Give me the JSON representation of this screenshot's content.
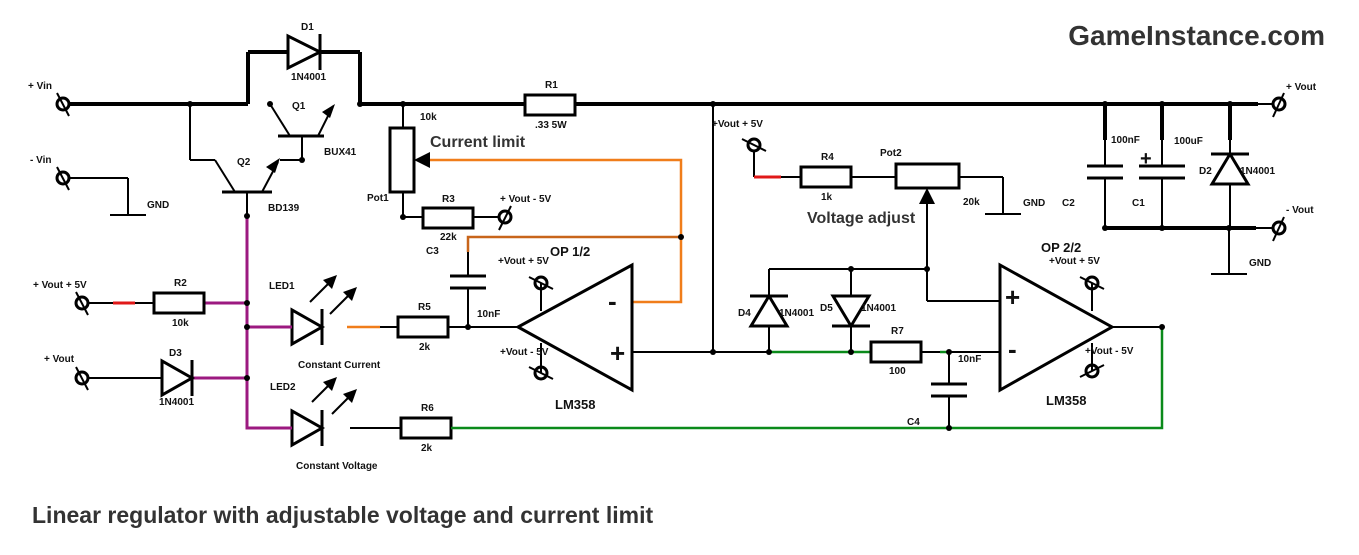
{
  "brand": "GameInstance.com",
  "title": "Linear regulator with adjustable voltage and current limit",
  "labels": {
    "vin_plus": "+ Vin",
    "vin_minus": "- Vin",
    "gnd": "GND",
    "vout_plus": "+ Vout",
    "vout_minus": "- Vout",
    "vout_p5": "+ Vout + 5V",
    "vout_m5": "+ Vout - 5V",
    "vout_p5_b": "+Vout + 5V",
    "vout_m5_b": "+Vout - 5V",
    "vout": "+ Vout",
    "current_limit": "Current limit",
    "voltage_adjust": "Voltage adjust",
    "constant_current": "Constant Current",
    "constant_voltage": "Constant  Voltage",
    "op1": "OP 1/2",
    "op2": "OP 2/2",
    "lm358": "LM358",
    "minus": "-",
    "plus": "+"
  },
  "components": {
    "d1": {
      "name": "D1",
      "value": "1N4001"
    },
    "q1": {
      "name": "Q1",
      "value": "BUX41"
    },
    "q2": {
      "name": "Q2",
      "value": "BD139"
    },
    "r1": {
      "name": "R1",
      "value": ".33 5W"
    },
    "pot1": {
      "name": "Pot1",
      "value": "10k"
    },
    "r3": {
      "name": "R3",
      "value": "22k"
    },
    "c3": {
      "name": "C3",
      "value": "10nF"
    },
    "r2": {
      "name": "R2",
      "value": "10k"
    },
    "d3": {
      "name": "D3",
      "value": "1N4001"
    },
    "led1": {
      "name": "LED1"
    },
    "led2": {
      "name": "LED2"
    },
    "r5": {
      "name": "R5",
      "value": "2k"
    },
    "r6": {
      "name": "R6",
      "value": "2k"
    },
    "r4": {
      "name": "R4",
      "value": "1k"
    },
    "pot2": {
      "name": "Pot2",
      "value": "20k"
    },
    "d4": {
      "name": "D4",
      "value": "1N4001"
    },
    "d5": {
      "name": "D5",
      "value": "1N4001"
    },
    "r7": {
      "name": "R7",
      "value": "100"
    },
    "c4": {
      "name": "C4",
      "value": "10nF"
    },
    "c1": {
      "name": "C1",
      "value": "100uF"
    },
    "c2": {
      "name": "C2",
      "value": "100nF"
    },
    "d2": {
      "name": "D2",
      "value": "1N4001"
    }
  },
  "colors": {
    "wire": "#000000",
    "current_loop": "#f07d1a",
    "voltage_loop": "#0a8a1a",
    "led_supply": "#9c1a80",
    "supply_tap": "#e01818"
  }
}
